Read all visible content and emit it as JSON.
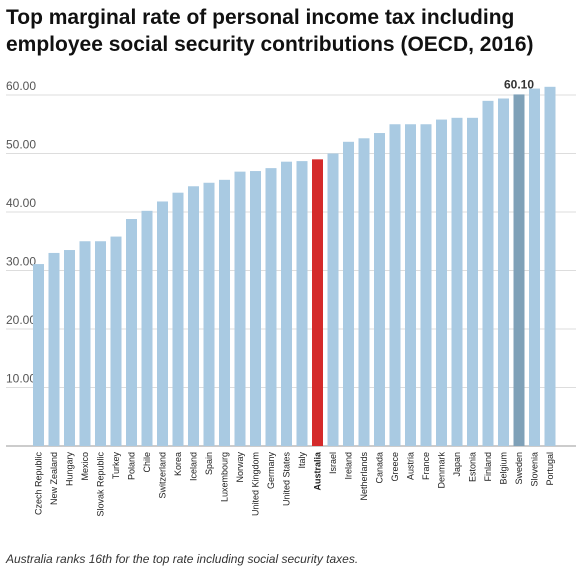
{
  "title": "Top marginal rate of personal income tax including employee social security contributions (OECD, 2016)",
  "caption": "Australia ranks 16th for the top rate including social security taxes.",
  "colors": {
    "bar": "#a9cae2",
    "highlight": "#d42a2a",
    "peak": "#7fa1b8",
    "grid": "#dddddd",
    "axis": "#999999"
  },
  "chart_data": {
    "type": "bar",
    "categories": [
      "Czech Republic",
      "New Zealand",
      "Hungary",
      "Mexico",
      "Slovak Republic",
      "Turkey",
      "Poland",
      "Chile",
      "Switzerland",
      "Korea",
      "Iceland",
      "Spain",
      "Luxembourg",
      "Norway",
      "United Kingdom",
      "Germany",
      "United States",
      "Italy",
      "Australia",
      "Israel",
      "Ireland",
      "Netherlands",
      "Canada",
      "Greece",
      "Austria",
      "France",
      "Denmark",
      "Japan",
      "Estonia",
      "Finland",
      "Belgium",
      "Sweden",
      "Slovenia",
      "Portugal"
    ],
    "values": [
      31.1,
      33.0,
      33.5,
      35.0,
      35.0,
      35.8,
      38.8,
      40.2,
      41.8,
      43.3,
      44.4,
      45.0,
      45.5,
      46.9,
      47.0,
      47.5,
      48.6,
      48.7,
      49.0,
      50.0,
      52.0,
      52.6,
      53.5,
      55.0,
      55.0,
      55.0,
      55.8,
      56.1,
      56.1,
      59.0,
      59.4,
      60.1,
      61.1,
      61.4
    ],
    "ylim": [
      0,
      60
    ],
    "yticks": [
      "60.00",
      "50.00",
      "40.00",
      "30.00",
      "20.00",
      "10.00"
    ],
    "highlight_category": "Australia",
    "annotated_category": "Sweden",
    "annotation_label": "60.10",
    "grid": true,
    "xlabel": "",
    "ylabel": ""
  }
}
